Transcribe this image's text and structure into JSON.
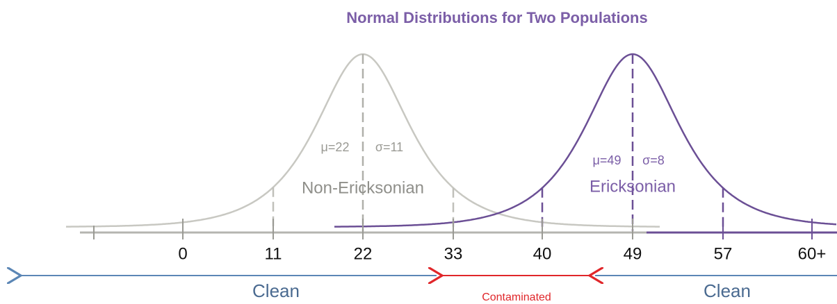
{
  "title": "Normal Distributions for Two Populations",
  "curves": [
    {
      "mean_label": "μ=22",
      "sd_label": "σ=11",
      "name": "Non-Ericksonian"
    },
    {
      "mean_label": "μ=49",
      "sd_label": "σ=8",
      "name": "Ericksonian"
    }
  ],
  "axis": {
    "ticks": [
      "0",
      "11",
      "22",
      "33",
      "40",
      "49",
      "57",
      "60+"
    ]
  },
  "regions": [
    "Clean",
    "Contaminated",
    "Clean"
  ]
}
